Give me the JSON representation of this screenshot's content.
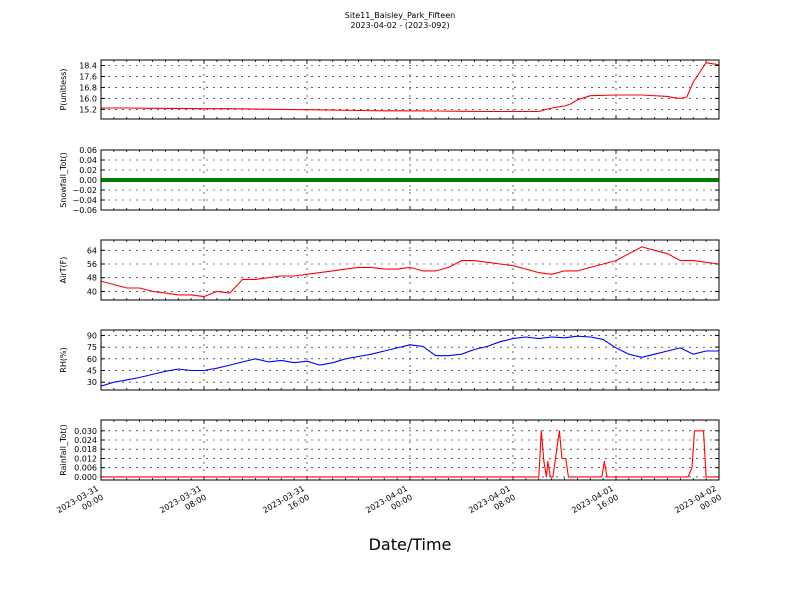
{
  "chart_data": [
    {
      "type": "line",
      "ylabel": "P(unitless)",
      "color": "#ff0000",
      "ylim": [
        14.5,
        18.8
      ],
      "yticks": [
        15.2,
        16.0,
        16.8,
        17.6,
        18.4
      ],
      "ytick_labels": [
        "15.2",
        "16.0",
        "16.8",
        "17.6",
        "18.4"
      ],
      "x": [
        0,
        2,
        4,
        6,
        8,
        10,
        12,
        14,
        16,
        18,
        20,
        22,
        24,
        26,
        28,
        30,
        32,
        33,
        34,
        35,
        36,
        36.5,
        37,
        38,
        40,
        42,
        44,
        44.5,
        45,
        45.5,
        46,
        47,
        48
      ],
      "y": [
        15.3,
        15.3,
        15.28,
        15.27,
        15.25,
        15.25,
        15.22,
        15.2,
        15.18,
        15.15,
        15.12,
        15.1,
        15.1,
        15.08,
        15.06,
        15.05,
        15.05,
        15.05,
        15.05,
        15.3,
        15.45,
        15.6,
        15.9,
        16.2,
        16.25,
        16.25,
        16.15,
        16.05,
        16.0,
        16.1,
        17.2,
        18.6,
        18.45
      ]
    },
    {
      "type": "line",
      "ylabel": "Snowfall_Tot()",
      "color": "#008000",
      "ylim": [
        -0.06,
        0.06
      ],
      "yticks": [
        -0.06,
        -0.04,
        -0.02,
        0.0,
        0.02,
        0.04,
        0.06
      ],
      "ytick_labels": [
        "−0.06",
        "−0.04",
        "−0.02",
        "0.00",
        "0.02",
        "0.04",
        "0.06"
      ],
      "x": [
        0,
        48
      ],
      "y": [
        0,
        0
      ]
    },
    {
      "type": "line",
      "ylabel": "AirT(F)",
      "color": "#ff0000",
      "ylim": [
        35,
        70
      ],
      "yticks": [
        40,
        48,
        56,
        64
      ],
      "ytick_labels": [
        "40",
        "48",
        "56",
        "64"
      ],
      "x": [
        0,
        1,
        2,
        3,
        4,
        5,
        6,
        7,
        8,
        9,
        10,
        11,
        12,
        13,
        14,
        15,
        16,
        17,
        18,
        19,
        20,
        21,
        22,
        23,
        24,
        25,
        26,
        27,
        28,
        29,
        30,
        31,
        32,
        33,
        34,
        35,
        36,
        37,
        38,
        39,
        40,
        41,
        42,
        43,
        44,
        45,
        46,
        47,
        48
      ],
      "y": [
        46,
        44,
        42,
        42,
        40,
        39,
        38,
        38,
        37,
        40,
        39,
        47,
        47,
        48,
        49,
        49,
        50,
        51,
        52,
        53,
        54,
        54,
        53,
        53,
        54,
        52,
        52,
        54,
        58,
        58,
        57,
        56,
        55,
        53,
        51,
        50,
        52,
        52,
        54,
        56,
        58,
        62,
        66,
        64,
        62,
        58,
        58,
        57,
        56
      ]
    },
    {
      "type": "line",
      "ylabel": "RH(%)",
      "color": "#0000ff",
      "ylim": [
        20,
        97
      ],
      "yticks": [
        30,
        45,
        60,
        75,
        90
      ],
      "ytick_labels": [
        "30",
        "45",
        "60",
        "75",
        "90"
      ],
      "x": [
        0,
        1,
        2,
        3,
        4,
        5,
        6,
        7,
        8,
        9,
        10,
        11,
        12,
        13,
        14,
        15,
        16,
        17,
        18,
        19,
        20,
        21,
        22,
        23,
        24,
        25,
        26,
        27,
        28,
        29,
        30,
        31,
        32,
        33,
        34,
        35,
        36,
        37,
        38,
        39,
        40,
        41,
        42,
        43,
        44,
        45,
        46,
        47,
        48
      ],
      "y": [
        25,
        30,
        33,
        36,
        40,
        44,
        47,
        45,
        45,
        48,
        52,
        56,
        60,
        56,
        58,
        55,
        57,
        52,
        55,
        60,
        63,
        66,
        70,
        74,
        78,
        76,
        64,
        64,
        66,
        72,
        76,
        82,
        86,
        88,
        86,
        88,
        87,
        89,
        88,
        85,
        74,
        66,
        62,
        66,
        70,
        74,
        66,
        70,
        70
      ]
    },
    {
      "type": "line",
      "ylabel": "Rainfall_Tot()",
      "color": "#ff0000",
      "ylim": [
        -0.002,
        0.037
      ],
      "yticks": [
        0.0,
        0.006,
        0.012,
        0.018,
        0.024,
        0.03
      ],
      "ytick_labels": [
        "0.000",
        "0.006",
        "0.012",
        "0.018",
        "0.024",
        "0.030"
      ],
      "x": [
        0,
        34.0,
        34.2,
        34.4,
        34.6,
        34.7,
        34.9,
        35.1,
        35.3,
        35.6,
        35.8,
        36.1,
        36.3,
        36.5,
        36.7,
        38.9,
        39.1,
        39.3,
        45.6,
        45.9,
        46.1,
        46.6,
        46.8,
        47.0,
        48
      ],
      "y": [
        0,
        0,
        0.03,
        0.01,
        0,
        0.01,
        0,
        0,
        0.012,
        0.03,
        0.012,
        0.012,
        0,
        0,
        0,
        0,
        0.01,
        0,
        0,
        0.006,
        0.03,
        0.03,
        0.03,
        0,
        0
      ]
    }
  ],
  "title": "Site11_Baisley_Park_Fifteen",
  "subtitle": "2023-04-02 - (2023-092)",
  "xlabel": "Date/Time",
  "x_ticks": [
    {
      "pos": 0,
      "line1": "2023-03-31",
      "line2": "00:00"
    },
    {
      "pos": 8,
      "line1": "2023-03-31",
      "line2": "08:00"
    },
    {
      "pos": 16,
      "line1": "2023-03-31",
      "line2": "16:00"
    },
    {
      "pos": 24,
      "line1": "2023-04-01",
      "line2": "00:00"
    },
    {
      "pos": 32,
      "line1": "2023-04-01",
      "line2": "08:00"
    },
    {
      "pos": 40,
      "line1": "2023-04-01",
      "line2": "16:00"
    },
    {
      "pos": 48,
      "line1": "2023-04-02",
      "line2": "00:00"
    }
  ],
  "grid": true
}
